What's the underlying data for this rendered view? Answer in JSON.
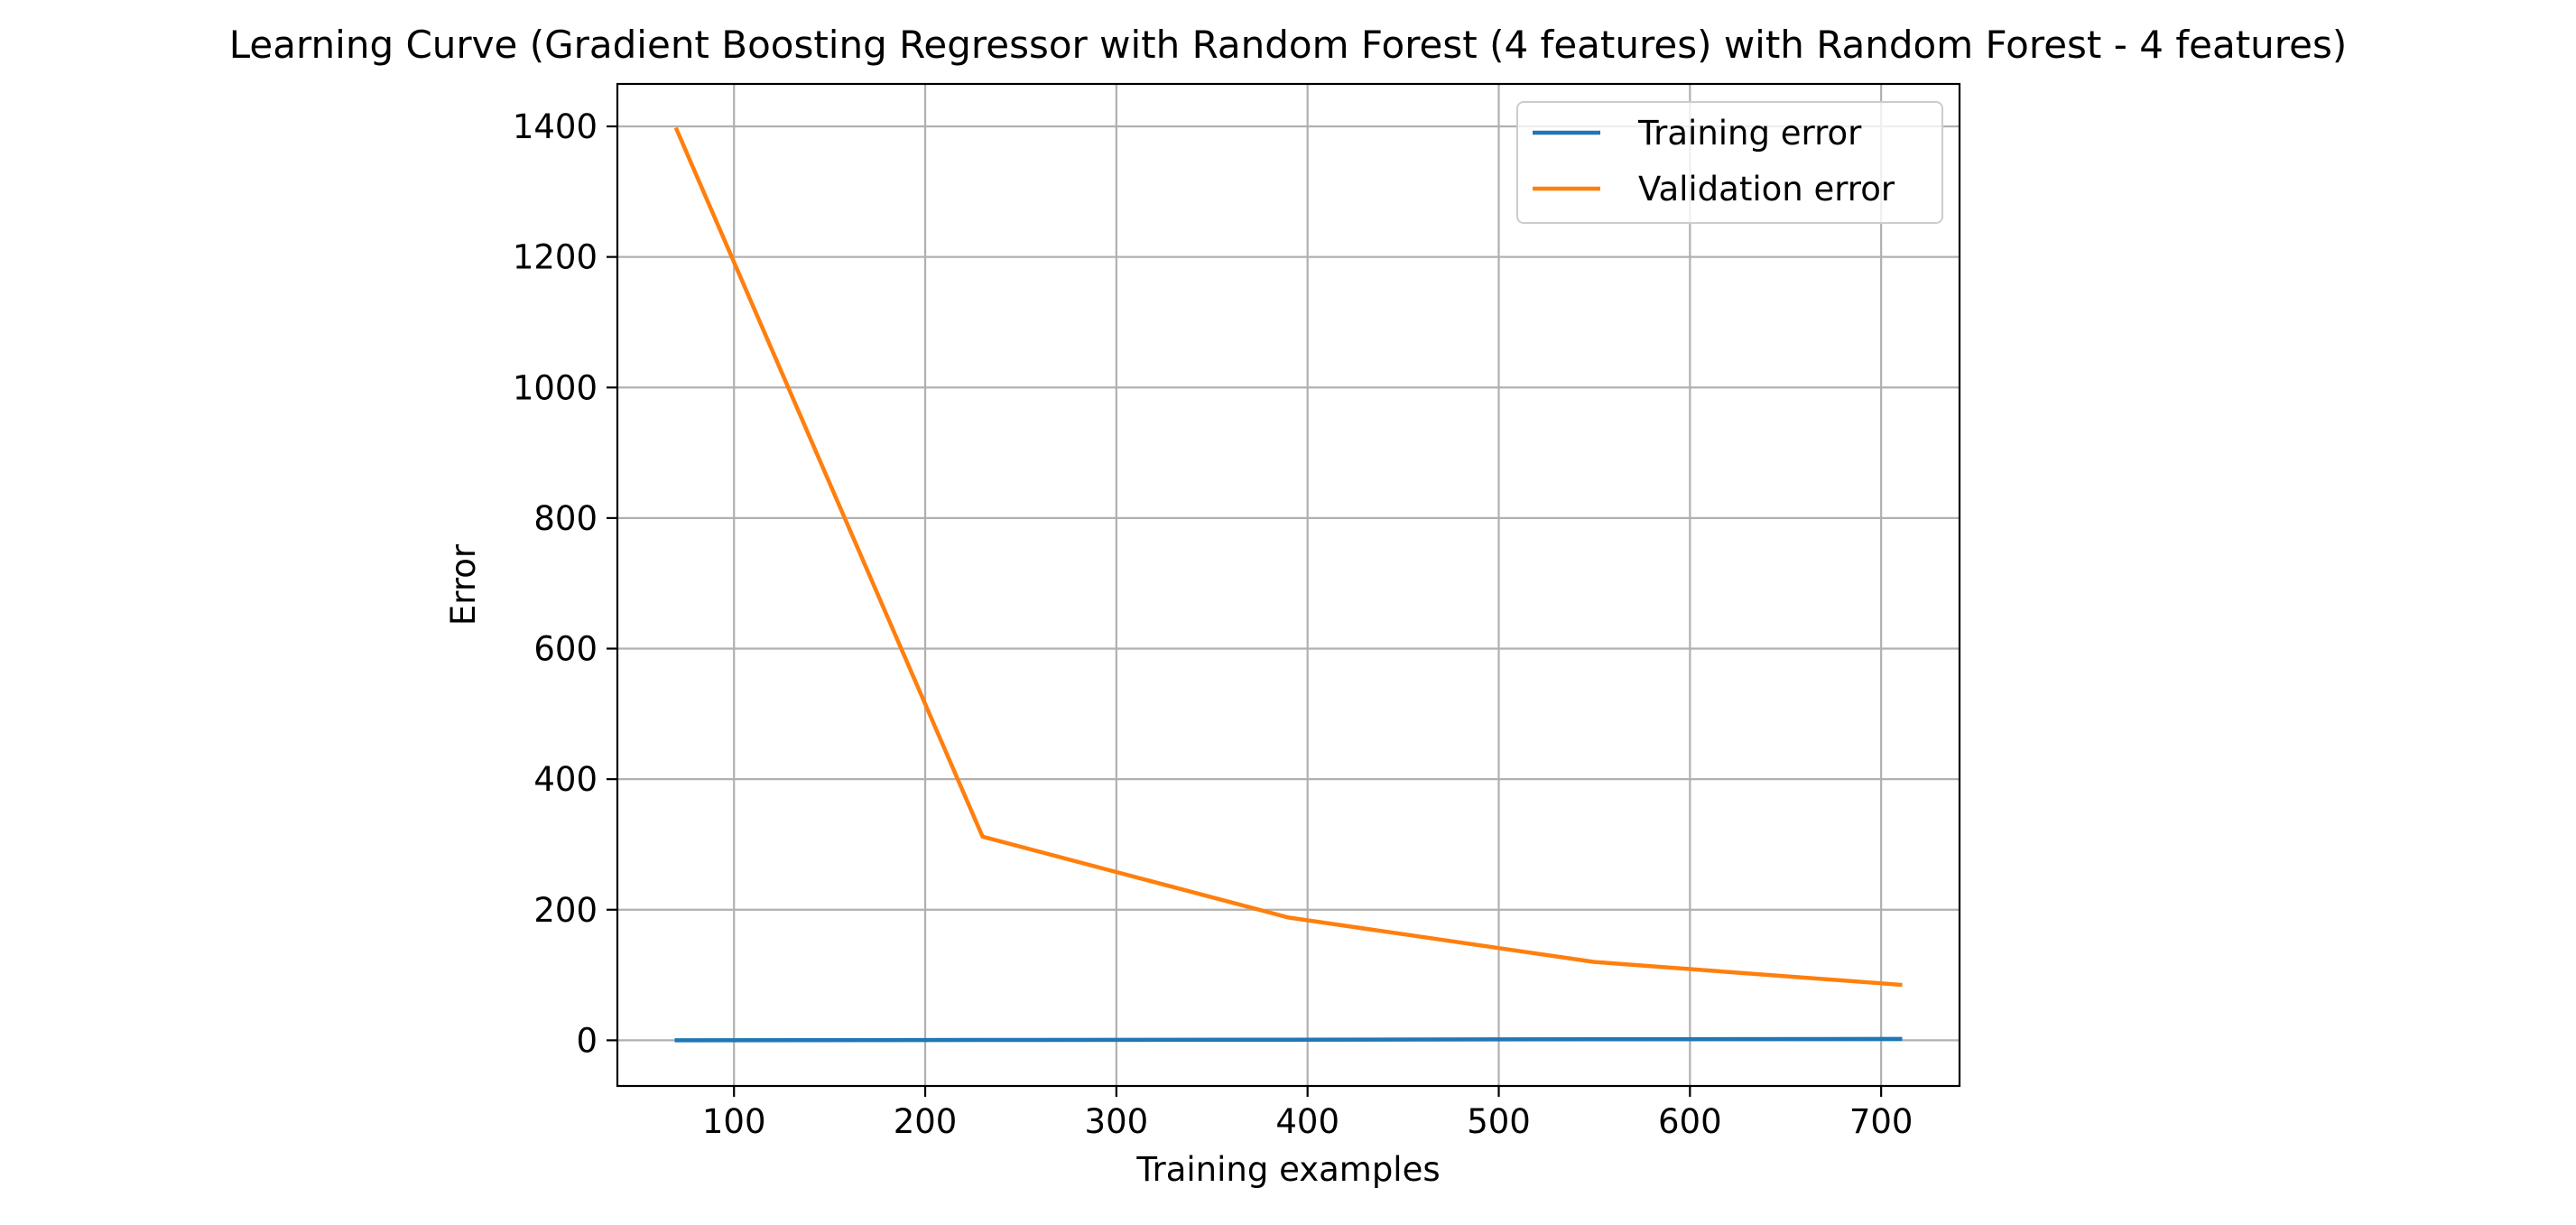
{
  "chart_data": {
    "type": "line",
    "title": "Learning Curve (Gradient Boosting Regressor with Random Forest (4 features) with Random Forest - 4 features)",
    "xlabel": "Training examples",
    "ylabel": "Error",
    "xlim": [
      39,
      741
    ],
    "ylim": [
      -70,
      1465
    ],
    "xticks": [
      100,
      200,
      300,
      400,
      500,
      600,
      700
    ],
    "yticks": [
      0,
      200,
      400,
      600,
      800,
      1000,
      1200,
      1400
    ],
    "grid": true,
    "legend_position": "top-right",
    "x": [
      70,
      230,
      390,
      550,
      710
    ],
    "series": [
      {
        "name": "Training error",
        "color": "#1f77b4",
        "values": [
          0,
          0.5,
          1,
          1.5,
          2
        ]
      },
      {
        "name": "Validation error",
        "color": "#ff7f0e",
        "values": [
          1395,
          312,
          188,
          120,
          85
        ]
      }
    ]
  }
}
